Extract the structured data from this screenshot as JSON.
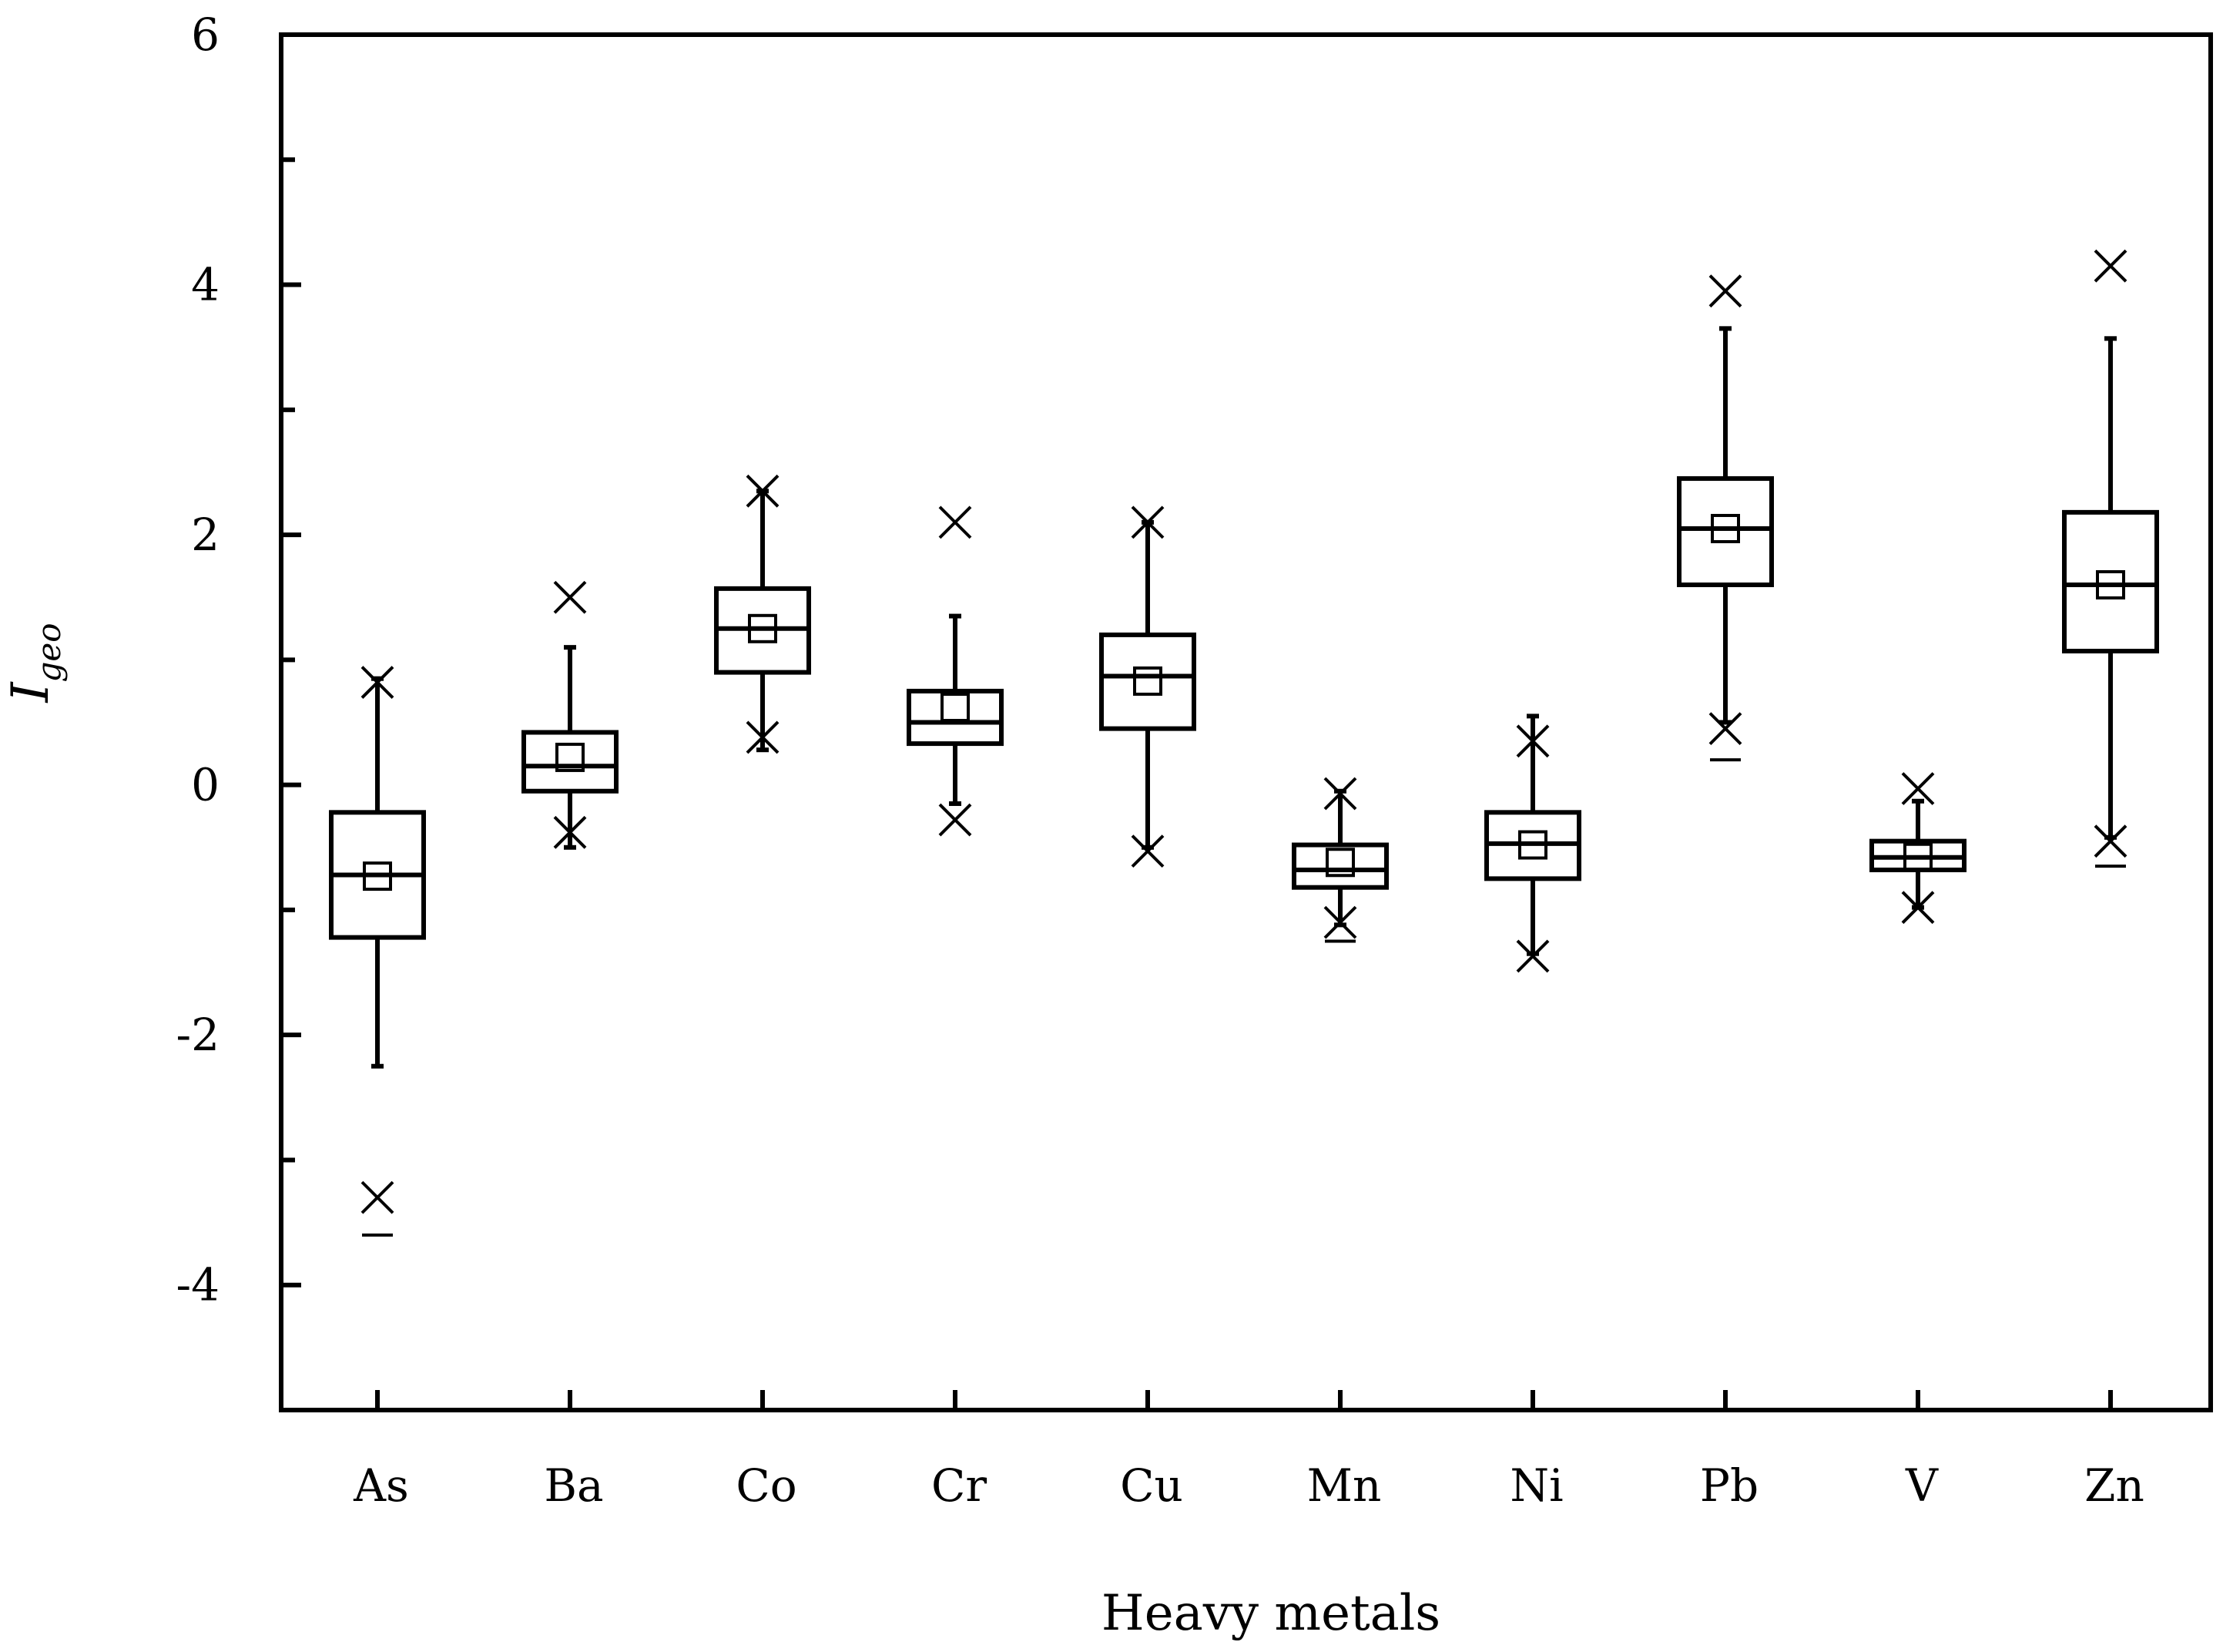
{
  "chart_data": {
    "type": "box",
    "xlabel": "Heavy metals",
    "ylabel": {
      "base": "I",
      "subscript": "geo"
    },
    "ylim": [
      -5,
      6
    ],
    "yticks": [
      -4,
      -2,
      0,
      2,
      4,
      6
    ],
    "grid": false,
    "categories": [
      "As",
      "Ba",
      "Co",
      "Cr",
      "Cu",
      "Mn",
      "Ni",
      "Pb",
      "V",
      "Zn"
    ],
    "boxes": [
      {
        "category": "As",
        "whisker_low": -2.25,
        "q1": -1.22,
        "median": -0.72,
        "q3": -0.22,
        "whisker_high": 0.85,
        "mean": -0.73,
        "x_low": -3.3,
        "x_high": 0.82,
        "min_dash": -3.6
      },
      {
        "category": "Ba",
        "whisker_low": -0.5,
        "q1": -0.05,
        "median": 0.15,
        "q3": 0.42,
        "whisker_high": 1.1,
        "mean": 0.22,
        "x_low": -0.38,
        "x_high": 1.5
      },
      {
        "category": "Co",
        "whisker_low": 0.28,
        "q1": 0.9,
        "median": 1.25,
        "q3": 1.57,
        "whisker_high": 2.35,
        "mean": 1.25,
        "x_low": 0.38,
        "x_high": 2.35
      },
      {
        "category": "Cr",
        "whisker_low": -0.15,
        "q1": 0.33,
        "median": 0.5,
        "q3": 0.75,
        "whisker_high": 1.35,
        "mean": 0.62,
        "x_low": -0.28,
        "x_high": 2.1
      },
      {
        "category": "Cu",
        "whisker_low": -0.5,
        "q1": 0.45,
        "median": 0.87,
        "q3": 1.2,
        "whisker_high": 2.1,
        "mean": 0.83,
        "x_low": -0.53,
        "x_high": 2.1
      },
      {
        "category": "Mn",
        "whisker_low": -1.12,
        "q1": -0.82,
        "median": -0.68,
        "q3": -0.48,
        "whisker_high": -0.05,
        "mean": -0.62,
        "x_low": -1.1,
        "x_high": -0.07,
        "min_dash": -1.25
      },
      {
        "category": "Ni",
        "whisker_low": -1.35,
        "q1": -0.75,
        "median": -0.47,
        "q3": -0.22,
        "whisker_high": 0.55,
        "mean": -0.48,
        "x_low": -1.37,
        "x_high": 0.35
      },
      {
        "category": "Pb",
        "whisker_low": 0.5,
        "q1": 1.6,
        "median": 2.05,
        "q3": 2.45,
        "whisker_high": 3.65,
        "mean": 2.05,
        "x_low": 0.45,
        "x_high": 3.95,
        "min_dash": 0.2
      },
      {
        "category": "V",
        "whisker_low": -0.98,
        "q1": -0.68,
        "median": -0.58,
        "q3": -0.45,
        "whisker_high": -0.13,
        "mean": -0.58,
        "x_low": -0.98,
        "x_high": -0.03
      },
      {
        "category": "Zn",
        "whisker_low": -0.42,
        "q1": 1.07,
        "median": 1.6,
        "q3": 2.18,
        "whisker_high": 3.57,
        "mean": 1.6,
        "x_low": -0.45,
        "x_high": 4.15,
        "min_dash": -0.65
      }
    ]
  }
}
